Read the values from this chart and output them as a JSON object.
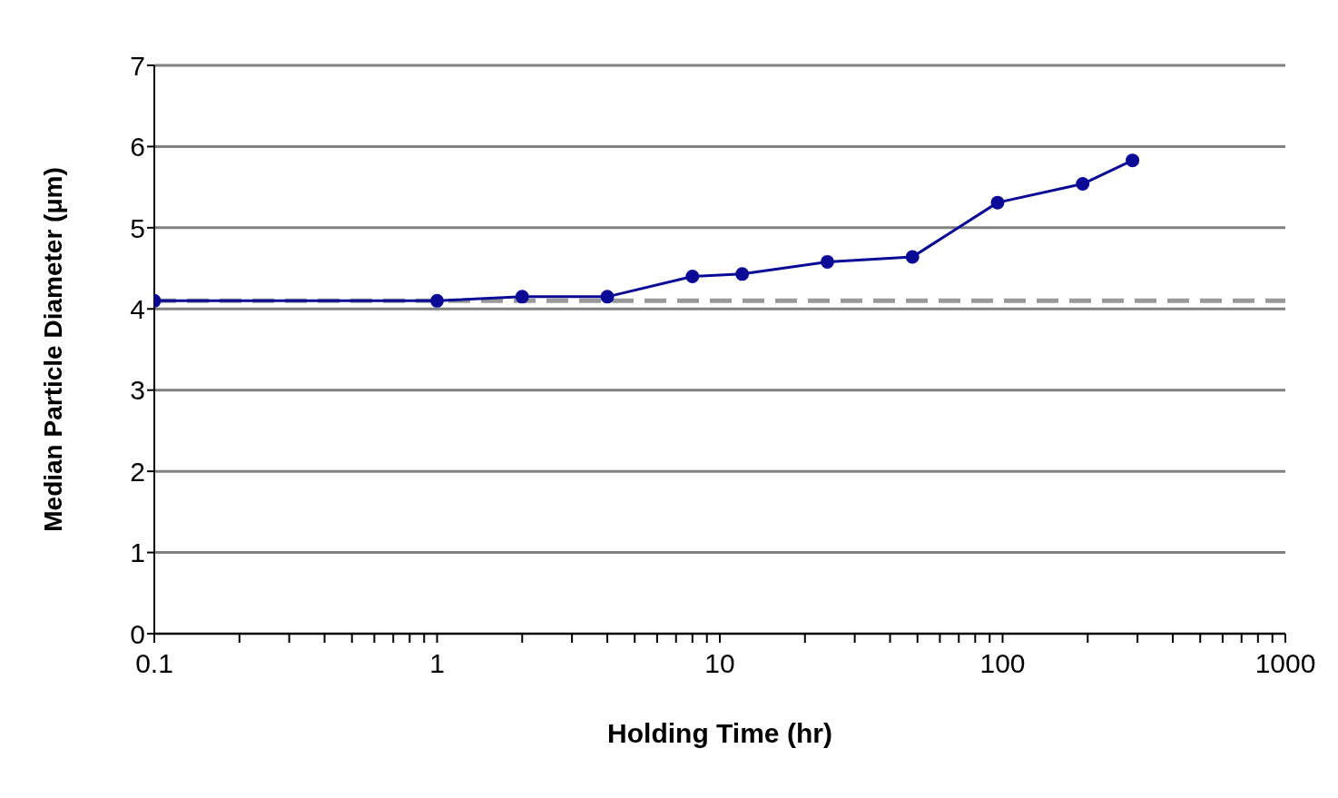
{
  "chart_data": {
    "type": "line",
    "xlabel": "Holding Time (hr)",
    "ylabel": "Median Particle Diameter (μm)",
    "x": [
      0.1,
      1,
      2,
      4,
      8,
      12,
      24,
      48,
      96,
      192,
      288
    ],
    "series": [
      {
        "color": "#0a0a96",
        "values": [
          4.1,
          4.1,
          4.15,
          4.15,
          4.4,
          4.43,
          4.58,
          4.64,
          5.31,
          5.54,
          5.83
        ]
      }
    ],
    "log": "x",
    "xlim": [
      0.1,
      1000
    ],
    "xticks": [
      0.1,
      {
        "value": 0.2,
        "label": null
      },
      {
        "value": 0.3,
        "label": null
      },
      {
        "value": 0.4,
        "label": null
      },
      {
        "value": 0.5,
        "label": null
      },
      {
        "value": 0.6,
        "label": null
      },
      {
        "value": 0.7,
        "label": null
      },
      {
        "value": 0.8,
        "label": null
      },
      {
        "value": 0.9,
        "label": null
      },
      1,
      {
        "value": 2,
        "label": null
      },
      {
        "value": 3,
        "label": null
      },
      {
        "value": 4,
        "label": null
      },
      {
        "value": 5,
        "label": null
      },
      {
        "value": 6,
        "label": null
      },
      {
        "value": 7,
        "label": null
      },
      {
        "value": 8,
        "label": null
      },
      {
        "value": 9,
        "label": null
      },
      10,
      {
        "value": 20,
        "label": null
      },
      {
        "value": 30,
        "label": null
      },
      {
        "value": 40,
        "label": null
      },
      {
        "value": 50,
        "label": null
      },
      {
        "value": 60,
        "label": null
      },
      {
        "value": 70,
        "label": null
      },
      {
        "value": 80,
        "label": null
      },
      {
        "value": 90,
        "label": null
      },
      100,
      {
        "value": 200,
        "label": null
      },
      {
        "value": 300,
        "label": null
      },
      {
        "value": 400,
        "label": null
      },
      {
        "value": 500,
        "label": null
      },
      {
        "value": 600,
        "label": null
      },
      {
        "value": 700,
        "label": null
      },
      {
        "value": 800,
        "label": null
      },
      {
        "value": 900,
        "label": null
      },
      1000
    ],
    "ylim": [
      0,
      7
    ],
    "yticks": [
      0,
      1,
      2,
      3,
      4,
      5,
      6,
      7
    ],
    "grid": "y",
    "marker": "circle",
    "line_style": "solid",
    "ref_lines": [
      {
        "axis": "y",
        "value": 4.1,
        "color": "#999999",
        "line_style": "dashed"
      }
    ]
  }
}
